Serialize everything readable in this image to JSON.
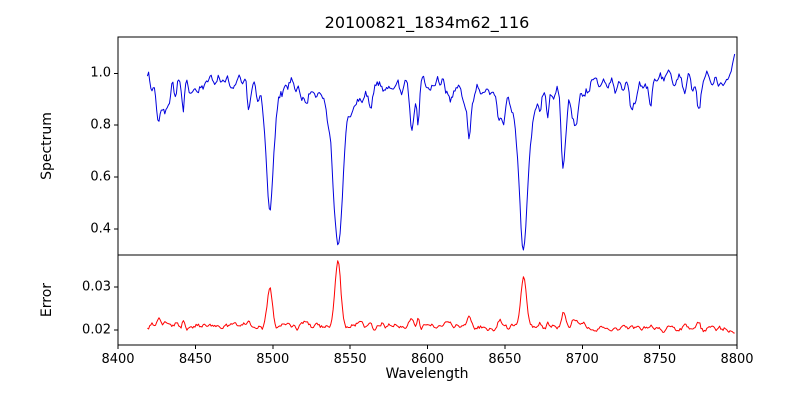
{
  "chart_data": {
    "type": "line",
    "title": "20100821_1834m62_116",
    "xlabel": "Wavelength",
    "xlim": [
      8400,
      8800
    ],
    "xticks": [
      8400,
      8450,
      8500,
      8550,
      8600,
      8650,
      8700,
      8750,
      8800
    ],
    "data_xrange": [
      8419,
      8799
    ],
    "grid": false,
    "legend": "none",
    "panels": [
      {
        "name": "spectrum",
        "ylabel": "Spectrum",
        "color": "#0000dd",
        "ylim": [
          0.3,
          1.14
        ],
        "yticks": [
          0.4,
          0.6,
          0.8,
          1.0
        ],
        "ytick_labels": [
          "0.4",
          "0.6",
          "0.8",
          "1.0"
        ],
        "continuum": 0.97,
        "noise_amplitude": 0.045,
        "absorption_lines": [
          {
            "center": 8498.0,
            "depth": 0.45,
            "width": 2.2
          },
          {
            "center": 8542.1,
            "depth": 0.65,
            "width": 2.8
          },
          {
            "center": 8662.1,
            "depth": 0.64,
            "width": 2.6
          },
          {
            "center": 8688.6,
            "depth": 0.22,
            "width": 1.6
          }
        ]
      },
      {
        "name": "error",
        "ylabel": "Error",
        "color": "#ff0000",
        "ylim": [
          0.0165,
          0.0375
        ],
        "yticks": [
          0.02,
          0.03
        ],
        "ytick_labels": [
          "0.02",
          "0.03"
        ],
        "baseline": 0.0205,
        "noise_amplitude": 0.0012,
        "peaks": [
          {
            "center": 8498.0,
            "height": 0.0085,
            "width": 1.6
          },
          {
            "center": 8542.1,
            "height": 0.0155,
            "width": 1.8
          },
          {
            "center": 8662.1,
            "height": 0.0115,
            "width": 1.8
          },
          {
            "center": 8688.6,
            "height": 0.003,
            "width": 1.4
          }
        ]
      }
    ]
  }
}
